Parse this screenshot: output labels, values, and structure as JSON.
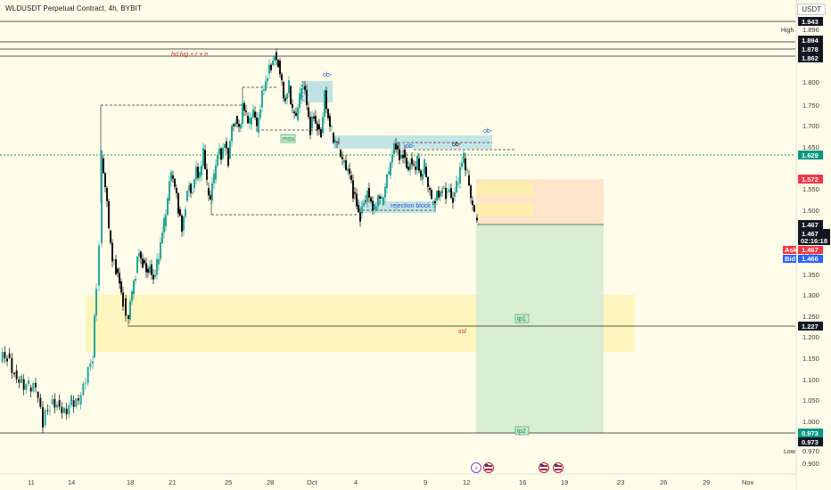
{
  "header": {
    "title": "WLDUSDT Perpetual Contract, 4h, BYBIT",
    "currency": "USDT"
  },
  "price_axis": {
    "ticks": [
      "1.800",
      "1.750",
      "1.700",
      "1.650",
      "1.550",
      "1.500",
      "1.400",
      "1.350",
      "1.300",
      "1.250",
      "1.200",
      "1.150",
      "1.100",
      "1.050",
      "1.000",
      "0.900"
    ],
    "range": [
      0.88,
      1.96
    ]
  },
  "price_tags": {
    "top_1943": "1.943",
    "high_label": "High",
    "high_value": "1.896",
    "level_1894": "1.894",
    "level_1878": "1.878",
    "level_1862": "1.862",
    "level_1629": "1.629",
    "level_1572": "1.572",
    "level_1467a": "1.467",
    "last_price": "1.467",
    "countdown": "02:16:18",
    "ask_label": "Ask",
    "ask_value": "1.467",
    "bid_label": "Bid",
    "bid_value": "1.466",
    "level_1227": "1.227",
    "level_0973a": "0.973",
    "level_0973b": "0.973",
    "low_label": "Low",
    "low_value": "0.970"
  },
  "time_axis": {
    "labels": [
      "11",
      "14",
      "18",
      "21",
      "25",
      "28",
      "Oct",
      "4",
      "9",
      "12",
      "16",
      "19",
      "23",
      "26",
      "29",
      "Nov"
    ]
  },
  "annotations": {
    "fvg_text": "hd fvg + r + e",
    "ob_top": "ob-",
    "mss": "mss",
    "ob_right": "ob-",
    "ob_mid_left": "ob-",
    "ob_mid_right": "ob-",
    "rejection": "rejection block",
    "ssl": "ssl",
    "tp1": "tp1",
    "tp2": "tp2"
  },
  "colors": {
    "background": "#fffde9",
    "up": "#26a69a",
    "down": "#101010",
    "stop_zone": "#fbe0c2",
    "target_zone": "#d5ecd2",
    "yellow_zone": "#fff3b3",
    "ob_zone": "#a9dae3",
    "red_tag": "#f23645",
    "green_tag": "#089981"
  },
  "chart_data": {
    "type": "candlestick",
    "symbol": "WLDUSDT Perpetual Contract",
    "timeframe": "4h",
    "exchange": "BYBIT",
    "last_price": 1.467,
    "high": 1.896,
    "low": 0.97,
    "horizontal_levels": [
      1.943,
      1.894,
      1.878,
      1.862,
      1.629,
      1.227,
      0.973
    ],
    "close_path": [
      [
        0,
        1.14
      ],
      [
        8,
        1.16
      ],
      [
        16,
        1.12
      ],
      [
        24,
        1.1
      ],
      [
        32,
        1.08
      ],
      [
        40,
        1.07
      ],
      [
        48,
        0.99
      ],
      [
        56,
        1.04
      ],
      [
        64,
        1.05
      ],
      [
        72,
        1.03
      ],
      [
        80,
        1.05
      ],
      [
        88,
        1.04
      ],
      [
        96,
        1.09
      ],
      [
        104,
        1.15
      ],
      [
        108,
        1.32
      ],
      [
        111,
        1.42
      ],
      [
        114,
        1.62
      ],
      [
        118,
        1.55
      ],
      [
        122,
        1.45
      ],
      [
        126,
        1.38
      ],
      [
        130,
        1.36
      ],
      [
        134,
        1.33
      ],
      [
        138,
        1.29
      ],
      [
        141,
        1.25
      ],
      [
        144,
        1.24
      ],
      [
        148,
        1.3
      ],
      [
        152,
        1.35
      ],
      [
        156,
        1.4
      ],
      [
        160,
        1.38
      ],
      [
        164,
        1.36
      ],
      [
        168,
        1.37
      ],
      [
        172,
        1.34
      ],
      [
        176,
        1.37
      ],
      [
        180,
        1.42
      ],
      [
        184,
        1.46
      ],
      [
        188,
        1.52
      ],
      [
        192,
        1.58
      ],
      [
        196,
        1.55
      ],
      [
        200,
        1.5
      ],
      [
        204,
        1.45
      ],
      [
        208,
        1.52
      ],
      [
        212,
        1.56
      ],
      [
        216,
        1.55
      ],
      [
        220,
        1.6
      ],
      [
        224,
        1.58
      ],
      [
        228,
        1.64
      ],
      [
        232,
        1.55
      ],
      [
        236,
        1.52
      ],
      [
        240,
        1.57
      ],
      [
        244,
        1.63
      ],
      [
        248,
        1.62
      ],
      [
        252,
        1.66
      ],
      [
        256,
        1.62
      ],
      [
        260,
        1.7
      ],
      [
        264,
        1.72
      ],
      [
        268,
        1.69
      ],
      [
        272,
        1.75
      ],
      [
        276,
        1.72
      ],
      [
        280,
        1.7
      ],
      [
        284,
        1.73
      ],
      [
        288,
        1.68
      ],
      [
        292,
        1.74
      ],
      [
        296,
        1.78
      ],
      [
        300,
        1.82
      ],
      [
        304,
        1.84
      ],
      [
        308,
        1.87
      ],
      [
        312,
        1.85
      ],
      [
        316,
        1.8
      ],
      [
        320,
        1.76
      ],
      [
        324,
        1.79
      ],
      [
        328,
        1.73
      ],
      [
        332,
        1.71
      ],
      [
        336,
        1.76
      ],
      [
        340,
        1.79
      ],
      [
        344,
        1.74
      ],
      [
        348,
        1.69
      ],
      [
        352,
        1.72
      ],
      [
        356,
        1.7
      ],
      [
        360,
        1.68
      ],
      [
        364,
        1.78
      ],
      [
        368,
        1.72
      ],
      [
        372,
        1.68
      ],
      [
        376,
        1.66
      ],
      [
        380,
        1.64
      ],
      [
        384,
        1.61
      ],
      [
        388,
        1.59
      ],
      [
        392,
        1.58
      ],
      [
        396,
        1.54
      ],
      [
        400,
        1.51
      ],
      [
        404,
        1.49
      ],
      [
        408,
        1.52
      ],
      [
        412,
        1.55
      ],
      [
        416,
        1.52
      ],
      [
        420,
        1.5
      ],
      [
        424,
        1.53
      ],
      [
        428,
        1.51
      ],
      [
        432,
        1.55
      ],
      [
        436,
        1.58
      ],
      [
        440,
        1.63
      ],
      [
        444,
        1.65
      ],
      [
        448,
        1.62
      ],
      [
        452,
        1.64
      ],
      [
        456,
        1.6
      ],
      [
        460,
        1.62
      ],
      [
        464,
        1.6
      ],
      [
        468,
        1.62
      ],
      [
        472,
        1.57
      ],
      [
        476,
        1.6
      ],
      [
        480,
        1.55
      ],
      [
        484,
        1.51
      ],
      [
        488,
        1.52
      ],
      [
        492,
        1.53
      ],
      [
        496,
        1.55
      ],
      [
        500,
        1.54
      ],
      [
        504,
        1.55
      ],
      [
        508,
        1.53
      ],
      [
        512,
        1.56
      ],
      [
        516,
        1.6
      ],
      [
        520,
        1.62
      ],
      [
        524,
        1.58
      ],
      [
        528,
        1.52
      ],
      [
        532,
        1.48
      ],
      [
        535,
        1.467
      ]
    ],
    "trade_setup": {
      "entry": 1.467,
      "stop_top": 1.572,
      "target": 0.973
    }
  }
}
